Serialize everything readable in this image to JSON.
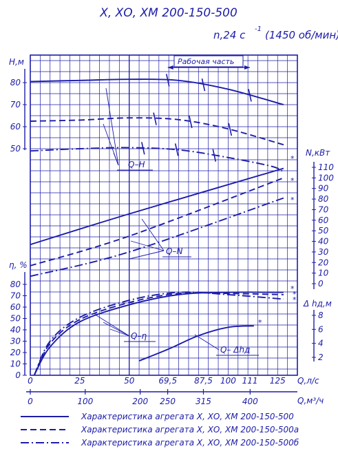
{
  "title": "Х, ХО, ХМ 200-150-500",
  "speed_label": "n,24 с",
  "speed_exponent": "-1",
  "speed_rpm": "(1450 об/мин)",
  "working_zone_label": "Рабочая часть",
  "curve_labels": {
    "qh": "Q–H",
    "qn": "Q–N",
    "qeta": "Q–η",
    "qdh": "Q– Δhд"
  },
  "star": "*",
  "chart_data": [
    {
      "type": "line",
      "title": "",
      "xlabel": "Q,л/с",
      "xlabel2": "Q,м³/ч",
      "x_ticks_ls": [
        "0",
        "25",
        "50",
        "69,5",
        "87,5",
        "100",
        "111",
        "125"
      ],
      "x_ticks_m3h": [
        "0",
        "100",
        "200",
        "250",
        "315",
        "400"
      ],
      "x_range_ls": [
        0,
        135
      ],
      "panels": [
        {
          "name": "head",
          "ylabel": "H,м",
          "y_ticks": [
            "80",
            "70",
            "60",
            "50"
          ],
          "ylim": [
            40,
            90
          ],
          "series": [
            {
              "name": "Характеристика агрегата Х, ХО, ХМ 200-150-500",
              "style": "solid",
              "x": [
                0,
                25,
                50,
                75,
                100,
                128
              ],
              "y": [
                80.5,
                81,
                81.5,
                81,
                77,
                70
              ]
            },
            {
              "name": "Характеристика агрегата Х, ХО, ХМ 200-150-500а",
              "style": "dashed",
              "x": [
                0,
                25,
                50,
                75,
                100,
                128
              ],
              "y": [
                62.5,
                63,
                64,
                63.2,
                59,
                51.8
              ]
            },
            {
              "name": "Характеристика агрегата Х, ХО, ХМ 200-150-500б",
              "style": "dashdot",
              "x": [
                0,
                25,
                50,
                75,
                100,
                122,
                128
              ],
              "y": [
                49,
                50,
                50.5,
                49.5,
                46,
                42,
                39.5
              ]
            }
          ]
        },
        {
          "name": "power",
          "ylabel": "N,кВт",
          "y_ticks": [
            "110",
            "100",
            "90",
            "80",
            "70",
            "60",
            "50",
            "40",
            "30",
            "20",
            "10",
            "0"
          ],
          "ylim": [
            0,
            115
          ],
          "series": [
            {
              "name": "Характеристика агрегата Х, ХО, ХМ 200-150-500",
              "style": "solid",
              "x": [
                0,
                50,
                128
              ],
              "y": [
                37,
                66,
                109
              ]
            },
            {
              "name": "Характеристика агрегата Х, ХО, ХМ 200-150-500а",
              "style": "dashed",
              "x": [
                0,
                50,
                128
              ],
              "y": [
                17,
                45,
                100
              ]
            },
            {
              "name": "Характеристика агрегата Х, ХО, ХМ 200-150-500б",
              "style": "dashdot",
              "x": [
                0,
                50,
                128
              ],
              "y": [
                7,
                30,
                81
              ]
            }
          ]
        },
        {
          "name": "efficiency",
          "ylabel": "η, %",
          "y_ticks": [
            "80",
            "70",
            "60",
            "50",
            "40",
            "30",
            "20",
            "10",
            "0"
          ],
          "ylim": [
            0,
            85
          ],
          "series": [
            {
              "name": "Характеристика агрегата Х, ХО, ХМ 200-150-500",
              "style": "solid",
              "x": [
                2,
                10,
                25,
                50,
                75,
                100,
                128
              ],
              "y": [
                0,
                25,
                47,
                62,
                71,
                73,
                73
              ]
            },
            {
              "name": "Характеристика агрегата Х, ХО, ХМ 200-150-500а",
              "style": "dashed",
              "x": [
                2,
                10,
                25,
                50,
                75,
                100,
                128
              ],
              "y": [
                0,
                28,
                49,
                64,
                72,
                72,
                71
              ]
            },
            {
              "name": "Характеристика агрегата Х, ХО, ХМ 200-150-500б",
              "style": "dashdot",
              "x": [
                2,
                10,
                25,
                50,
                75,
                100,
                128
              ],
              "y": [
                0,
                30,
                51,
                66,
                73,
                71,
                67
              ]
            }
          ]
        },
        {
          "name": "npsh",
          "ylabel": "Δ hд,м",
          "y_ticks": [
            "8",
            "6",
            "4",
            "2"
          ],
          "ylim": [
            0,
            9
          ],
          "series": [
            {
              "name": "Характеристика агрегата Х, ХО, ХМ 200-150-500",
              "style": "solid",
              "x": [
                55,
                70,
                85,
                100,
                113
              ],
              "y": [
                1.5,
                3.2,
                5.1,
                6.3,
                6.5
              ]
            }
          ]
        }
      ]
    }
  ],
  "legend": [
    {
      "style": "solid",
      "text": "Характеристика агрегата Х, ХО, ХМ 200-150-500"
    },
    {
      "style": "dashed",
      "text": "Характеристика агрегата Х, ХО, ХМ 200-150-500а"
    },
    {
      "style": "dashdot",
      "text": "Характеристика агрегата Х, ХО, ХМ 200-150-500б"
    }
  ]
}
